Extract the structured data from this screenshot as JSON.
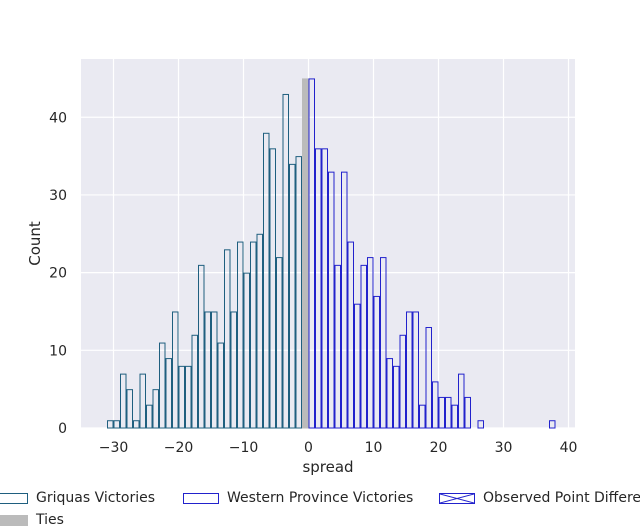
{
  "chart_data": {
    "type": "bar",
    "xlabel": "spread",
    "ylabel": "Count",
    "xlim": [
      -35,
      41
    ],
    "ylim": [
      0,
      47.5
    ],
    "x_ticks": [
      -30,
      -20,
      -10,
      0,
      10,
      20,
      30,
      40
    ],
    "y_ticks": [
      0,
      10,
      20,
      30,
      40
    ],
    "grid": true,
    "legend_placement": "top",
    "bin_width": 1,
    "series": [
      {
        "name": "Griquas Victories",
        "color": "#1f5f7f",
        "fill": "none",
        "bins": [
          {
            "x": -31,
            "y": 1
          },
          {
            "x": -30,
            "y": 1
          },
          {
            "x": -29,
            "y": 7
          },
          {
            "x": -28,
            "y": 5
          },
          {
            "x": -27,
            "y": 1
          },
          {
            "x": -26,
            "y": 7
          },
          {
            "x": -25,
            "y": 3
          },
          {
            "x": -24,
            "y": 5
          },
          {
            "x": -23,
            "y": 11
          },
          {
            "x": -22,
            "y": 9
          },
          {
            "x": -21,
            "y": 15
          },
          {
            "x": -20,
            "y": 8
          },
          {
            "x": -19,
            "y": 8
          },
          {
            "x": -18,
            "y": 12
          },
          {
            "x": -17,
            "y": 21
          },
          {
            "x": -16,
            "y": 15
          },
          {
            "x": -15,
            "y": 15
          },
          {
            "x": -14,
            "y": 11
          },
          {
            "x": -13,
            "y": 23
          },
          {
            "x": -12,
            "y": 15
          },
          {
            "x": -11,
            "y": 24
          },
          {
            "x": -10,
            "y": 20
          },
          {
            "x": -9,
            "y": 24
          },
          {
            "x": -8,
            "y": 25
          },
          {
            "x": -7,
            "y": 38
          },
          {
            "x": -6,
            "y": 36
          },
          {
            "x": -5,
            "y": 22
          },
          {
            "x": -4,
            "y": 43
          },
          {
            "x": -3,
            "y": 34
          },
          {
            "x": -2,
            "y": 35
          }
        ]
      },
      {
        "name": "Western Province Victories",
        "color": "#2222cc",
        "fill": "none",
        "bins": [
          {
            "x": 0,
            "y": 45
          },
          {
            "x": 1,
            "y": 36
          },
          {
            "x": 2,
            "y": 36
          },
          {
            "x": 3,
            "y": 33
          },
          {
            "x": 4,
            "y": 21
          },
          {
            "x": 5,
            "y": 33
          },
          {
            "x": 6,
            "y": 24
          },
          {
            "x": 7,
            "y": 16
          },
          {
            "x": 8,
            "y": 21
          },
          {
            "x": 9,
            "y": 22
          },
          {
            "x": 10,
            "y": 17
          },
          {
            "x": 11,
            "y": 22
          },
          {
            "x": 12,
            "y": 9
          },
          {
            "x": 13,
            "y": 8
          },
          {
            "x": 14,
            "y": 12
          },
          {
            "x": 15,
            "y": 15
          },
          {
            "x": 16,
            "y": 15
          },
          {
            "x": 17,
            "y": 3
          },
          {
            "x": 18,
            "y": 13
          },
          {
            "x": 19,
            "y": 6
          },
          {
            "x": 20,
            "y": 4
          },
          {
            "x": 21,
            "y": 4
          },
          {
            "x": 22,
            "y": 3
          },
          {
            "x": 23,
            "y": 7
          },
          {
            "x": 24,
            "y": 4
          },
          {
            "x": 26,
            "y": 1
          },
          {
            "x": 37,
            "y": 1
          }
        ]
      },
      {
        "name": "Ties",
        "color": "#bbbbbb",
        "fill": "#bbbbbb",
        "bins": [
          {
            "x": -1,
            "y": 45
          }
        ]
      }
    ],
    "legend": [
      {
        "label": "Griquas Victories",
        "style": "outline",
        "color": "#1f5f7f"
      },
      {
        "label": "Western Province Victories",
        "style": "outline",
        "color": "#2222cc"
      },
      {
        "label": "Observed Point Differen",
        "style": "hatched",
        "color": "#2222cc"
      },
      {
        "label": "Ties",
        "style": "filled",
        "color": "#bbbbbb"
      }
    ]
  }
}
